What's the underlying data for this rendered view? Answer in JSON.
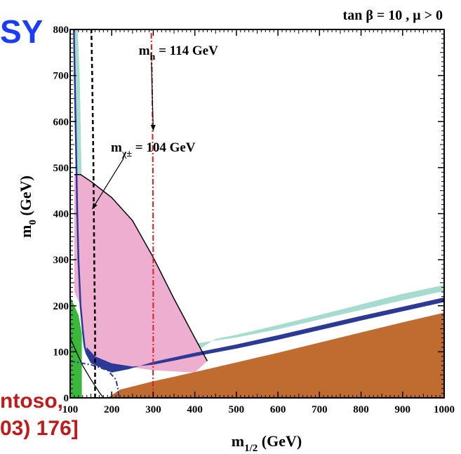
{
  "overlay": {
    "left_fragment": "SY",
    "bottom_fragment_1": "ntoso,",
    "bottom_fragment_2": "03) 176]"
  },
  "chart_data": {
    "type": "area",
    "title": "tan β = 10 ,  μ > 0",
    "xlabel_main": "m",
    "xlabel_sub": "1/2",
    "xlabel_unit": " (GeV)",
    "ylabel_main": "m",
    "ylabel_sub": "0",
    "ylabel_unit": " (GeV)",
    "xlim": [
      100,
      1000
    ],
    "ylim": [
      0,
      800
    ],
    "xticks": [
      100,
      200,
      300,
      400,
      500,
      600,
      700,
      800,
      900,
      1000
    ],
    "yticks": [
      0,
      100,
      200,
      300,
      400,
      500,
      600,
      700,
      800
    ],
    "grid": false,
    "colors": {
      "brown": "#c06c30",
      "cyan": "#a6dcd0",
      "pink": "#eeaed0",
      "blue": "#2c3a96",
      "green": "#3bb83b",
      "red": "#e02020"
    },
    "regions": {
      "stau_lsp": [
        [
          190,
          0
        ],
        [
          220,
          18
        ],
        [
          300,
          36
        ],
        [
          400,
          56
        ],
        [
          500,
          77
        ],
        [
          600,
          98
        ],
        [
          700,
          120
        ],
        [
          800,
          142
        ],
        [
          900,
          164
        ],
        [
          1000,
          185
        ],
        [
          1000,
          0
        ]
      ],
      "wmap_cyan": [
        [
          108,
          800
        ],
        [
          118,
          800
        ],
        [
          123,
          700
        ],
        [
          127,
          500
        ],
        [
          132,
          300
        ],
        [
          135,
          200
        ],
        [
          138,
          150
        ],
        [
          160,
          150
        ],
        [
          200,
          160
        ],
        [
          250,
          160
        ],
        [
          300,
          150
        ],
        [
          350,
          130
        ],
        [
          400,
          118
        ],
        [
          500,
          131
        ],
        [
          600,
          149
        ],
        [
          700,
          170
        ],
        [
          800,
          191
        ],
        [
          900,
          212
        ],
        [
          1000,
          232
        ],
        [
          1000,
          245
        ],
        [
          900,
          226
        ],
        [
          800,
          203
        ],
        [
          700,
          180
        ],
        [
          600,
          158
        ],
        [
          500,
          137
        ],
        [
          450,
          128
        ],
        [
          400,
          100
        ],
        [
          300,
          85
        ],
        [
          200,
          75
        ],
        [
          150,
          85
        ],
        [
          130,
          120
        ],
        [
          120,
          300
        ],
        [
          113,
          600
        ]
      ],
      "g2_pink": [
        [
          110,
          485
        ],
        [
          125,
          485
        ],
        [
          150,
          470
        ],
        [
          200,
          435
        ],
        [
          250,
          385
        ],
        [
          300,
          305
        ],
        [
          350,
          215
        ],
        [
          400,
          130
        ],
        [
          430,
          80
        ],
        [
          400,
          55
        ],
        [
          300,
          60
        ],
        [
          220,
          70
        ],
        [
          170,
          80
        ],
        [
          140,
          100
        ],
        [
          125,
          200
        ],
        [
          110,
          230
        ]
      ],
      "coann_blue": [
        [
          140,
          110
        ],
        [
          160,
          90
        ],
        [
          200,
          75
        ],
        [
          250,
          68
        ],
        [
          300,
          72
        ],
        [
          400,
          90
        ],
        [
          500,
          107
        ],
        [
          600,
          126
        ],
        [
          700,
          147
        ],
        [
          800,
          168
        ],
        [
          900,
          188
        ],
        [
          1000,
          208
        ],
        [
          1000,
          218
        ],
        [
          900,
          198
        ],
        [
          800,
          178
        ],
        [
          700,
          157
        ],
        [
          600,
          136
        ],
        [
          500,
          116
        ],
        [
          400,
          98
        ],
        [
          300,
          78
        ],
        [
          240,
          62
        ],
        [
          200,
          55
        ],
        [
          150,
          75
        ],
        [
          138,
          95
        ]
      ],
      "bsg_green": [
        [
          100,
          0
        ],
        [
          100,
          220
        ],
        [
          120,
          180
        ],
        [
          128,
          140
        ],
        [
          128,
          0
        ]
      ]
    },
    "lines": {
      "chargino": [
        [
          160,
          0
        ],
        [
          160,
          150
        ],
        [
          158,
          300
        ],
        [
          156,
          500
        ],
        [
          153,
          700
        ],
        [
          151,
          800
        ]
      ],
      "higgs": [
        [
          299,
          0
        ],
        [
          300,
          100
        ],
        [
          300,
          300
        ],
        [
          299,
          500
        ],
        [
          297,
          700
        ],
        [
          295,
          800
        ]
      ],
      "g2_boundary": [
        [
          110,
          485
        ],
        [
          125,
          485
        ],
        [
          150,
          470
        ],
        [
          200,
          435
        ],
        [
          250,
          385
        ],
        [
          300,
          305
        ],
        [
          350,
          215
        ],
        [
          400,
          130
        ],
        [
          430,
          80
        ]
      ],
      "ewsb_left": [
        [
          100,
          130
        ],
        [
          115,
          100
        ],
        [
          130,
          70
        ],
        [
          150,
          40
        ],
        [
          170,
          12
        ],
        [
          180,
          0
        ]
      ],
      "dashdot_blue": [
        [
          100,
          80
        ],
        [
          150,
          72
        ],
        [
          190,
          60
        ],
        [
          210,
          40
        ],
        [
          215,
          20
        ],
        [
          217,
          0
        ]
      ],
      "blue_edge_left": [
        [
          109,
          800
        ],
        [
          113,
          600
        ],
        [
          117,
          400
        ],
        [
          120,
          300
        ],
        [
          125,
          200
        ],
        [
          130,
          150
        ],
        [
          135,
          110
        ],
        [
          140,
          95
        ]
      ]
    },
    "annotations": [
      {
        "id": "mh",
        "main": "m",
        "sub": "h",
        "text": "  = 114 GeV",
        "x": 265,
        "y": 745,
        "arrow_to": [
          300,
          580
        ]
      },
      {
        "id": "mchi",
        "main": "m",
        "sub": "χ±",
        "text": "   = 104 GeV",
        "x": 198,
        "y": 535,
        "arrow_to": [
          153,
          410
        ]
      }
    ]
  }
}
